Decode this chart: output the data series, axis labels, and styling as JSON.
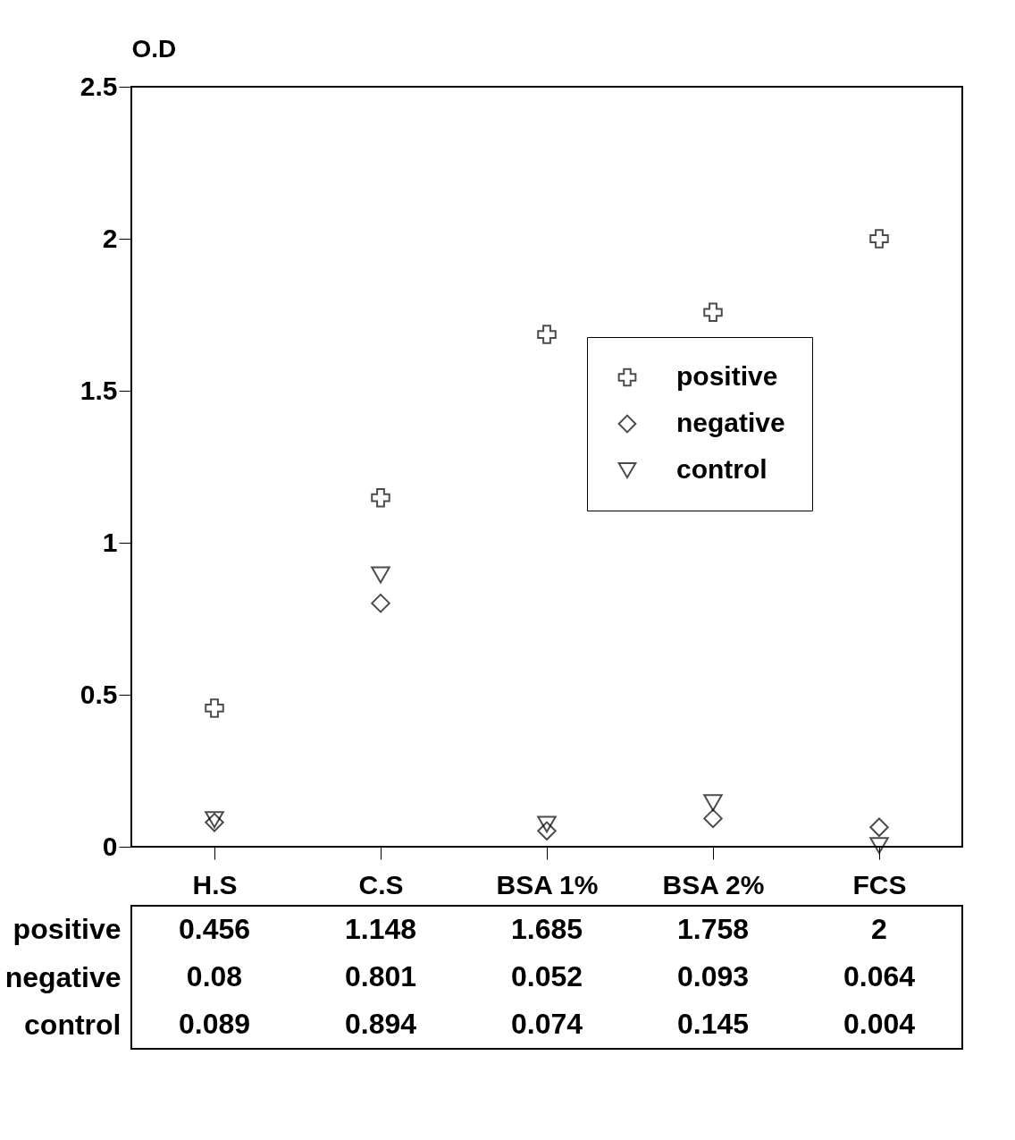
{
  "chart_data": {
    "type": "scatter",
    "ylabel": "O.D",
    "categories": [
      "H.S",
      "C.S",
      "BSA 1%",
      "BSA 2%",
      "FCS"
    ],
    "series": [
      {
        "name": "positive",
        "color": "#000000",
        "marker": "cross",
        "values": [
          0.456,
          1.148,
          1.685,
          1.758,
          2
        ]
      },
      {
        "name": "negative",
        "color": "#000000",
        "marker": "diamond",
        "values": [
          0.08,
          0.801,
          0.052,
          0.093,
          0.064
        ]
      },
      {
        "name": "control",
        "color": "#000000",
        "marker": "triangle",
        "values": [
          0.089,
          0.894,
          0.074,
          0.145,
          0.004
        ]
      }
    ],
    "ylim": [
      0,
      2.5
    ],
    "yticks": [
      0,
      0.5,
      1,
      1.5,
      2,
      2.5
    ],
    "grid": false,
    "legend": "right",
    "data_labels": true
  }
}
